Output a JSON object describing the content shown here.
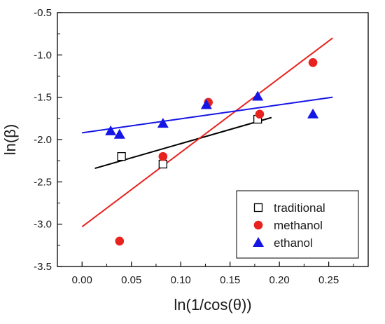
{
  "chart_data": {
    "type": "scatter",
    "xlabel": "ln(1/cos(θ))",
    "ylabel": "ln(β)",
    "xlim": [
      -0.025,
      0.29
    ],
    "ylim": [
      -3.5,
      -0.5
    ],
    "x_ticks": [
      "0.00",
      "0.05",
      "0.10",
      "0.15",
      "0.20",
      "0.25"
    ],
    "y_ticks": [
      "-0.5",
      "-1.0",
      "-1.5",
      "-2.0",
      "-2.5",
      "-3.0",
      "-3.5"
    ],
    "x_tick_values": [
      0.0,
      0.05,
      0.1,
      0.15,
      0.2,
      0.25
    ],
    "y_tick_values": [
      -0.5,
      -1.0,
      -1.5,
      -2.0,
      -2.5,
      -3.0,
      -3.5
    ],
    "grid": false,
    "legend_position": "bottom-right",
    "series": [
      {
        "name": "traditional",
        "marker": "open-square",
        "color": "#000000",
        "points": [
          [
            0.04,
            -2.2
          ],
          [
            0.082,
            -2.29
          ],
          [
            0.178,
            -1.76
          ]
        ],
        "fit": [
          [
            0.013,
            -2.34
          ],
          [
            0.192,
            -1.74
          ]
        ]
      },
      {
        "name": "methanol",
        "marker": "filled-circle",
        "color": "#e8221f",
        "points": [
          [
            0.038,
            -3.2
          ],
          [
            0.082,
            -2.2
          ],
          [
            0.128,
            -1.56
          ],
          [
            0.18,
            -1.7
          ],
          [
            0.234,
            -1.09
          ]
        ],
        "fit": [
          [
            0.0,
            -3.03
          ],
          [
            0.254,
            -0.8
          ]
        ]
      },
      {
        "name": "ethanol",
        "marker": "filled-triangle",
        "color": "#1515e6",
        "points": [
          [
            0.029,
            -1.9
          ],
          [
            0.038,
            -1.94
          ],
          [
            0.082,
            -1.81
          ],
          [
            0.126,
            -1.59
          ],
          [
            0.178,
            -1.49
          ],
          [
            0.234,
            -1.7
          ]
        ],
        "fit": [
          [
            0.0,
            -1.92
          ],
          [
            0.254,
            -1.5
          ]
        ]
      }
    ]
  }
}
